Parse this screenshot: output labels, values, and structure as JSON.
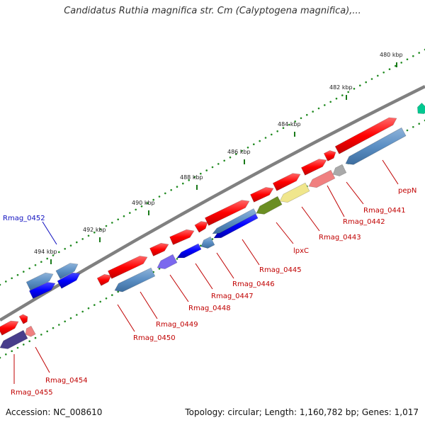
{
  "header": {
    "title": "Candidatus Ruthia magnifica str. Cm (Calyptogena magnifica),..."
  },
  "footer": {
    "accession": "Accession: NC_008610",
    "summary": "Topology: circular; Length: 1,160,782 bp; Genes: 1,017"
  },
  "ticks": [
    {
      "label": "480 kbp"
    },
    {
      "label": "482 kbp"
    },
    {
      "label": "484 kbp"
    },
    {
      "label": "486 kbp"
    },
    {
      "label": "488 kbp"
    },
    {
      "label": "490 kbp"
    },
    {
      "label": "492 kbp"
    },
    {
      "label": "494 kbp"
    }
  ],
  "gene_labels": [
    {
      "label": "pepN",
      "color": "#c00000"
    },
    {
      "label": "Rmag_0441",
      "color": "#c00000"
    },
    {
      "label": "Rmag_0442",
      "color": "#c00000"
    },
    {
      "label": "Rmag_0443",
      "color": "#c00000"
    },
    {
      "label": "lpxC",
      "color": "#c00000"
    },
    {
      "label": "Rmag_0445",
      "color": "#c00000"
    },
    {
      "label": "Rmag_0446",
      "color": "#c00000"
    },
    {
      "label": "Rmag_0447",
      "color": "#c00000"
    },
    {
      "label": "Rmag_0448",
      "color": "#c00000"
    },
    {
      "label": "Rmag_0449",
      "color": "#c00000"
    },
    {
      "label": "Rmag_0450",
      "color": "#c00000"
    },
    {
      "label": "Rmag_0452",
      "color": "#1010c0"
    },
    {
      "label": "Rmag_0454",
      "color": "#c00000"
    },
    {
      "label": "Rmag_0455",
      "color": "#c00000"
    }
  ],
  "colors": {
    "forward_cds": "#ff0000",
    "reverse_cds": "#0000ff",
    "backbone": "#888888",
    "tick_dots": "#228b22"
  }
}
